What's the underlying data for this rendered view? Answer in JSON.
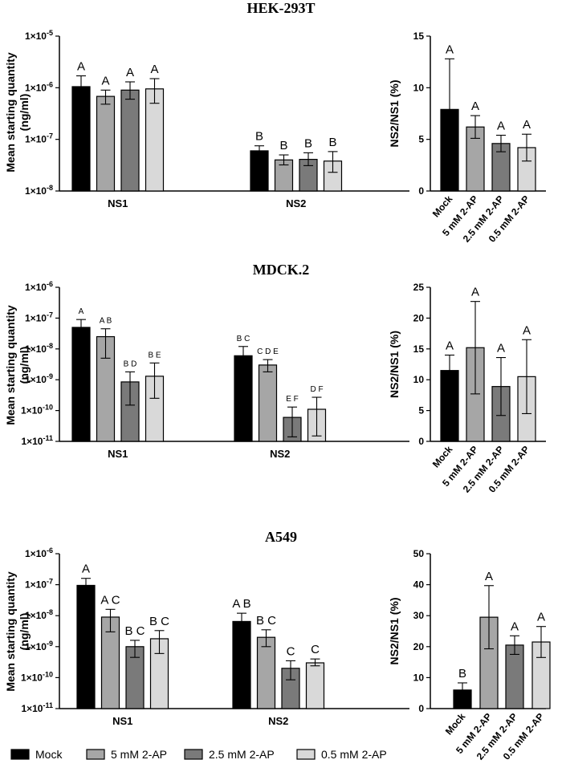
{
  "legend": [
    {
      "label": "Mock",
      "color": "#000000"
    },
    {
      "label": "5 mM 2-AP",
      "color": "#a6a6a6"
    },
    {
      "label": "2.5 mM 2-AP",
      "color": "#7a7a7a"
    },
    {
      "label": "0.5 mM 2-AP",
      "color": "#d9d9d9"
    }
  ],
  "chart_data": [
    {
      "panel": "HEK-293T left",
      "type": "bar",
      "title": "HEK-293T",
      "ylabel": "Mean starting quantity (ng/ml)",
      "ylabel_lines": [
        "Mean starting quantity",
        "(ng/ml)"
      ],
      "yscale": "log",
      "ylim": [
        1e-08,
        1e-05
      ],
      "yticks": [
        {
          "mant": "1×10",
          "exp": "-8"
        },
        {
          "mant": "1×10",
          "exp": "-7"
        },
        {
          "mant": "1×10",
          "exp": "-6"
        },
        {
          "mant": "1×10",
          "exp": "-5"
        }
      ],
      "categories": [
        "NS1",
        "NS2"
      ],
      "series": [
        {
          "name": "Mock",
          "values": [
            1.05e-06,
            6e-08
          ],
          "err_low": [
            6.5e-07,
            4.5e-08
          ],
          "err_high": [
            1.7e-06,
            7.5e-08
          ],
          "letters": [
            "A",
            "B"
          ]
        },
        {
          "name": "5 mM 2-AP",
          "values": [
            6.8e-07,
            4e-08
          ],
          "err_low": [
            4.8e-07,
            3.2e-08
          ],
          "err_high": [
            9e-07,
            5e-08
          ],
          "letters": [
            "A",
            "B"
          ]
        },
        {
          "name": "2.5 mM 2-AP",
          "values": [
            9e-07,
            4.1e-08
          ],
          "err_low": [
            6e-07,
            3.1e-08
          ],
          "err_high": [
            1.3e-06,
            5.5e-08
          ],
          "letters": [
            "A",
            "B"
          ]
        },
        {
          "name": "0.5 mM 2-AP",
          "values": [
            9.5e-07,
            3.8e-08
          ],
          "err_low": [
            5e-07,
            2.3e-08
          ],
          "err_high": [
            1.5e-06,
            5.8e-08
          ],
          "letters": [
            "A",
            "B"
          ]
        }
      ]
    },
    {
      "panel": "HEK-293T right",
      "type": "bar",
      "ylabel": "NS2/NS1 (%)",
      "yscale": "linear",
      "ylim": [
        0,
        15
      ],
      "yticks": [
        "0",
        "5",
        "10",
        "15"
      ],
      "categories": [
        "Mock",
        "5 mM 2-AP",
        "2.5 mM 2-AP",
        "0.5 mM 2-AP"
      ],
      "values": [
        7.9,
        6.2,
        4.6,
        4.2
      ],
      "err": [
        4.9,
        1.1,
        0.8,
        1.3
      ],
      "letters": [
        "A",
        "A",
        "A",
        "A"
      ]
    },
    {
      "panel": "MDCK.2 left",
      "type": "bar",
      "title": "MDCK.2",
      "ylabel": "Mean starting quantity (ng/ml)",
      "ylabel_lines": [
        "Mean starting quantity",
        "(ng/ml)"
      ],
      "yscale": "log",
      "ylim": [
        1e-11,
        1e-06
      ],
      "yticks": [
        {
          "mant": "1×10",
          "exp": "-11"
        },
        {
          "mant": "1×10",
          "exp": "-10"
        },
        {
          "mant": "1×10",
          "exp": "-9"
        },
        {
          "mant": "1×10",
          "exp": "-8"
        },
        {
          "mant": "1×10",
          "exp": "-7"
        },
        {
          "mant": "1×10",
          "exp": "-6"
        }
      ],
      "categories": [
        "NS1",
        "NS2"
      ],
      "series": [
        {
          "name": "Mock",
          "values": [
            5e-08,
            6e-09
          ],
          "err_low": [
            2.5e-08,
            2.5e-09
          ],
          "err_high": [
            9e-08,
            1.2e-08
          ],
          "letters": [
            "A",
            "B C"
          ]
        },
        {
          "name": "5 mM 2-AP",
          "values": [
            2.5e-08,
            3e-09
          ],
          "err_low": [
            5e-09,
            1.8e-09
          ],
          "err_high": [
            4.5e-08,
            4.5e-09
          ],
          "letters": [
            "A B",
            "C D E"
          ]
        },
        {
          "name": "2.5 mM 2-AP",
          "values": [
            8.5e-10,
            6e-11
          ],
          "err_low": [
            1.5e-10,
            1.4e-11
          ],
          "err_high": [
            1.8e-09,
            1.3e-10
          ],
          "letters": [
            "B D",
            "E F"
          ]
        },
        {
          "name": "0.5 mM 2-AP",
          "values": [
            1.3e-09,
            1.1e-10
          ],
          "err_low": [
            2.5e-10,
            1.5e-11
          ],
          "err_high": [
            3.5e-09,
            2.7e-10
          ],
          "letters": [
            "B E",
            "D F"
          ]
        }
      ]
    },
    {
      "panel": "MDCK.2 right",
      "type": "bar",
      "ylabel": "NS2/NS1 (%)",
      "yscale": "linear",
      "ylim": [
        0,
        25
      ],
      "yticks": [
        "0",
        "5",
        "10",
        "15",
        "20",
        "25"
      ],
      "categories": [
        "Mock",
        "5 mM 2-AP",
        "2.5 mM 2-AP",
        "0.5 mM 2-AP"
      ],
      "values": [
        11.5,
        15.2,
        8.9,
        10.5
      ],
      "err": [
        2.5,
        7.5,
        4.7,
        6.0
      ],
      "letters": [
        "A",
        "A",
        "A",
        "A"
      ]
    },
    {
      "panel": "A549 left",
      "type": "bar",
      "title": "A549",
      "ylabel": "Mean starting quantity (ng/ml)",
      "ylabel_lines": [
        "Mean starting quantity",
        "(ng/ml)"
      ],
      "yscale": "log",
      "ylim": [
        1e-11,
        1e-06
      ],
      "yticks": [
        {
          "mant": "1×10",
          "exp": "-11"
        },
        {
          "mant": "1×10",
          "exp": "-10"
        },
        {
          "mant": "1×10",
          "exp": "-9"
        },
        {
          "mant": "1×10",
          "exp": "-8"
        },
        {
          "mant": "1×10",
          "exp": "-7"
        },
        {
          "mant": "1×10",
          "exp": "-6"
        }
      ],
      "categories": [
        "NS1",
        "NS2"
      ],
      "series": [
        {
          "name": "Mock",
          "values": [
            9.5e-08,
            6.5e-09
          ],
          "err_low": [
            6e-08,
            3.5e-09
          ],
          "err_high": [
            1.6e-07,
            1.2e-08
          ],
          "letters": [
            "A",
            "A B"
          ]
        },
        {
          "name": "5 mM 2-AP",
          "values": [
            9e-09,
            2e-09
          ],
          "err_low": [
            3e-09,
            1e-09
          ],
          "err_high": [
            1.6e-08,
            3.5e-09
          ],
          "letters": [
            "A C",
            "B C"
          ]
        },
        {
          "name": "2.5 mM 2-AP",
          "values": [
            1e-09,
            2e-10
          ],
          "err_low": [
            4.5e-10,
            8.5e-11
          ],
          "err_high": [
            1.6e-09,
            3.5e-10
          ],
          "letters": [
            "B C",
            "C"
          ]
        },
        {
          "name": "0.5 mM 2-AP",
          "values": [
            1.8e-09,
            3e-10
          ],
          "err_low": [
            6e-10,
            2.4e-10
          ],
          "err_high": [
            3.3e-09,
            4e-10
          ],
          "letters": [
            "B C",
            "C"
          ]
        }
      ]
    },
    {
      "panel": "A549 right",
      "type": "bar",
      "ylabel": "NS2/NS1 (%)",
      "yscale": "linear",
      "ylim": [
        0,
        50
      ],
      "yticks": [
        "0",
        "10",
        "20",
        "30",
        "40",
        "50"
      ],
      "categories": [
        "Mock",
        "5 mM 2-AP",
        "2.5 mM 2-AP",
        "0.5 mM 2-AP"
      ],
      "values": [
        6.0,
        29.5,
        20.5,
        21.5
      ],
      "err": [
        2.3,
        10.2,
        3.0,
        5.0
      ],
      "letters": [
        "B",
        "A",
        "A",
        "A"
      ]
    }
  ]
}
